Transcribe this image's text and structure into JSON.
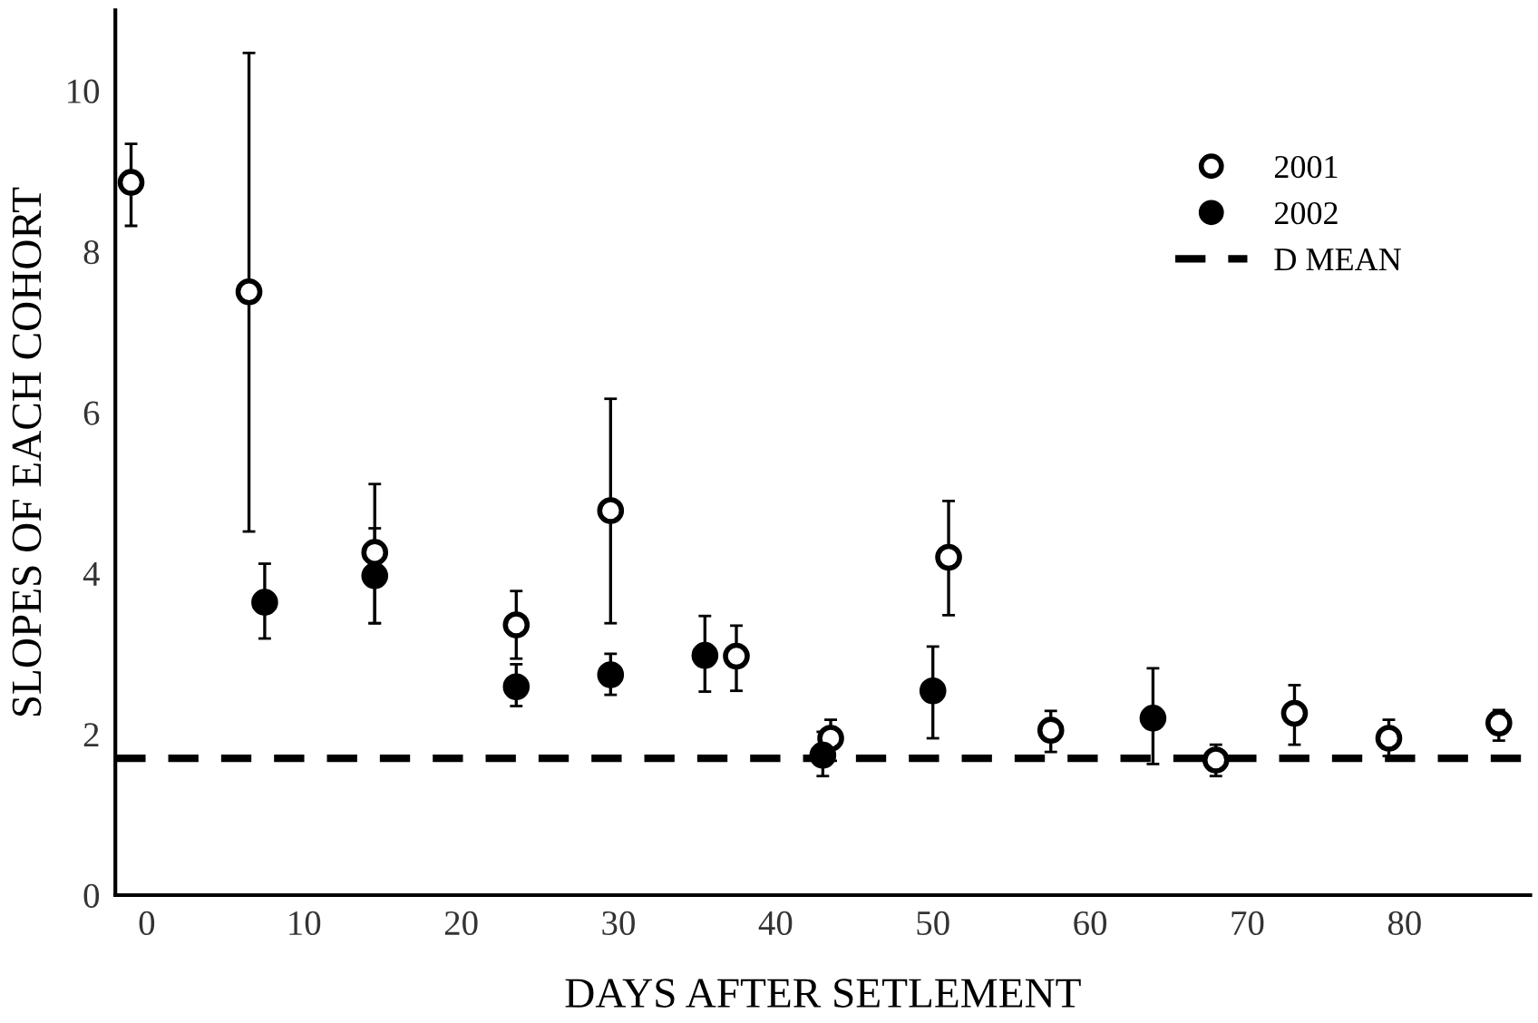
{
  "chart_data": {
    "type": "scatter",
    "xlabel": "DAYS AFTER SETLEMENT",
    "ylabel": "SLOPES OF EACH COHORT",
    "xlim": [
      -2,
      88
    ],
    "xticks": [
      0,
      10,
      20,
      30,
      40,
      50,
      60,
      70,
      80
    ],
    "ylim": [
      0,
      11
    ],
    "yticks": [
      0,
      2,
      4,
      6,
      8,
      10
    ],
    "grid": false,
    "legend": "top right",
    "marker": "circle",
    "series": [
      {
        "name": "2001",
        "color": "#ffffff",
        "x": [
          -1,
          6.5,
          14.5,
          23.5,
          29.5,
          37.5,
          43.5,
          51,
          57.5,
          68,
          73,
          79,
          86
        ],
        "values": [
          8.86,
          7.5,
          4.26,
          3.36,
          4.78,
          2.97,
          1.95,
          4.2,
          2.05,
          1.68,
          2.26,
          1.95,
          2.14
        ],
        "errors": [
          [
            8.32,
            9.34
          ],
          [
            4.52,
            10.47
          ],
          [
            3.38,
            5.11
          ],
          [
            2.94,
            3.78
          ],
          [
            3.38,
            6.17
          ],
          [
            2.54,
            3.35
          ],
          [
            1.67,
            2.18
          ],
          [
            3.48,
            4.9
          ],
          [
            1.78,
            2.29
          ],
          [
            1.48,
            1.87
          ],
          [
            1.87,
            2.61
          ],
          [
            1.73,
            2.18
          ],
          [
            1.92,
            2.3
          ]
        ]
      },
      {
        "name": "2002",
        "color": "#000000",
        "x": [
          7.5,
          14.5,
          23.5,
          29.5,
          35.5,
          43,
          50,
          64
        ],
        "values": [
          3.64,
          3.97,
          2.59,
          2.74,
          2.98,
          1.74,
          2.54,
          2.2
        ],
        "errors": [
          [
            3.19,
            4.12
          ],
          [
            3.38,
            4.56
          ],
          [
            2.35,
            2.87
          ],
          [
            2.49,
            3.0
          ],
          [
            2.53,
            3.47
          ],
          [
            1.48,
            2.03
          ],
          [
            1.95,
            3.09
          ],
          [
            1.63,
            2.82
          ]
        ]
      }
    ],
    "ref_lines": [
      {
        "axis": "y",
        "value": 1.7,
        "label": "D MEAN",
        "color": "#000000",
        "line_style": "dashed"
      }
    ]
  }
}
